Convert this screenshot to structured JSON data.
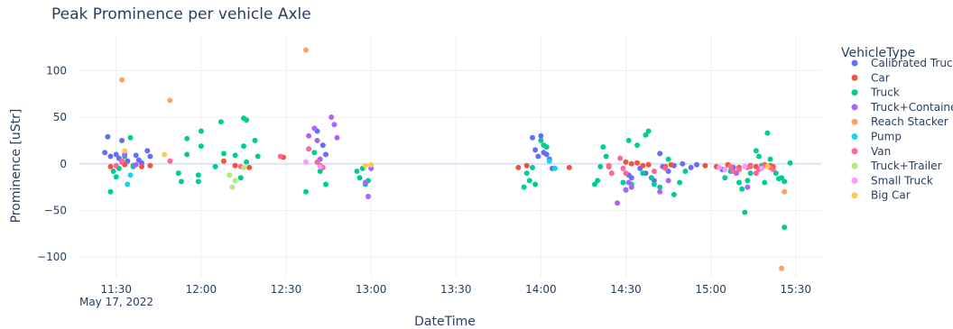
{
  "chart_data": {
    "type": "scatter",
    "title": "Peak Prominence per vehicle Axle",
    "xlabel": "DateTime",
    "ylabel": "Prominence [uStr]",
    "x_date_label": "May 17, 2022",
    "xlim": [
      "11:17",
      "15:39"
    ],
    "ylim": [
      -122,
      137
    ],
    "x_ticks": [
      "11:30",
      "12:00",
      "12:30",
      "13:00",
      "13:30",
      "14:00",
      "14:30",
      "15:00",
      "15:30"
    ],
    "y_ticks": [
      100,
      50,
      0,
      -50,
      -100
    ],
    "y_tick_labels": [
      "100",
      "50",
      "0",
      "−50",
      "−100"
    ],
    "grid": true,
    "legend": {
      "title": "VehicleType",
      "position": "right"
    },
    "series": [
      {
        "name": "Calibrated Truck",
        "color": "#636efa",
        "points": [
          [
            "11:27",
            29
          ],
          [
            "11:26",
            12
          ],
          [
            "11:28",
            8
          ],
          [
            "11:30",
            10
          ],
          [
            "11:31",
            6
          ],
          [
            "11:32",
            25
          ],
          [
            "11:34",
            3
          ],
          [
            "11:37",
            9
          ],
          [
            "11:38",
            4
          ],
          [
            "11:39",
            1
          ],
          [
            "11:41",
            14
          ],
          [
            "11:42",
            8
          ],
          [
            "12:41",
            35
          ],
          [
            "12:43",
            20
          ],
          [
            "12:44",
            10
          ],
          [
            "13:57",
            28
          ],
          [
            "13:58",
            15
          ],
          [
            "13:59",
            8
          ],
          [
            "14:00",
            30
          ],
          [
            "14:01",
            12
          ],
          [
            "14:02",
            10
          ],
          [
            "14:03",
            5
          ],
          [
            "14:04",
            -5
          ],
          [
            "14:31",
            -12
          ],
          [
            "14:32",
            -15
          ],
          [
            "14:35",
            -5
          ],
          [
            "14:37",
            -10
          ],
          [
            "14:40",
            -18
          ],
          [
            "14:42",
            11
          ],
          [
            "14:43",
            -3
          ],
          [
            "14:45",
            -8
          ],
          [
            "14:47",
            -2
          ],
          [
            "14:50",
            0
          ],
          [
            "14:53",
            -4
          ],
          [
            "14:55",
            -1
          ],
          [
            "15:04",
            -6
          ],
          [
            "15:08",
            -4
          ]
        ]
      },
      {
        "name": "Car",
        "color": "#ef553b",
        "points": [
          [
            "11:28",
            -3
          ],
          [
            "11:33",
            -1
          ],
          [
            "11:36",
            -2
          ],
          [
            "11:39",
            -3
          ],
          [
            "11:42",
            -2
          ],
          [
            "12:08",
            3
          ],
          [
            "12:12",
            -2
          ],
          [
            "12:17",
            -4
          ],
          [
            "12:29",
            7
          ],
          [
            "12:42",
            -2
          ],
          [
            "13:52",
            -4
          ],
          [
            "13:55",
            -2
          ],
          [
            "14:10",
            -4
          ],
          [
            "14:24",
            -3
          ],
          [
            "14:30",
            2
          ],
          [
            "14:32",
            0
          ],
          [
            "14:34",
            1
          ],
          [
            "14:36",
            -2
          ],
          [
            "14:38",
            -1
          ],
          [
            "14:44",
            -3
          ],
          [
            "14:46",
            -1
          ],
          [
            "14:58",
            -2
          ],
          [
            "15:02",
            -3
          ],
          [
            "15:06",
            -1
          ],
          [
            "15:10",
            -4
          ],
          [
            "15:14",
            -2
          ],
          [
            "15:16",
            -3
          ],
          [
            "15:19",
            -1
          ],
          [
            "15:21",
            -2
          ],
          [
            "15:22",
            -3
          ]
        ]
      },
      {
        "name": "Truck",
        "color": "#00cc96",
        "points": [
          [
            "11:28",
            -30
          ],
          [
            "11:29",
            -8
          ],
          [
            "11:30",
            -14
          ],
          [
            "11:31",
            -5
          ],
          [
            "11:33",
            8
          ],
          [
            "11:35",
            28
          ],
          [
            "11:36",
            -3
          ],
          [
            "11:52",
            -10
          ],
          [
            "11:53",
            -19
          ],
          [
            "11:55",
            27
          ],
          [
            "11:55",
            10
          ],
          [
            "11:59",
            -12
          ],
          [
            "11:59",
            -19
          ],
          [
            "12:00",
            19
          ],
          [
            "12:00",
            35
          ],
          [
            "12:05",
            -3
          ],
          [
            "12:07",
            45
          ],
          [
            "12:08",
            11
          ],
          [
            "12:12",
            9
          ],
          [
            "12:14",
            -15
          ],
          [
            "12:15",
            19
          ],
          [
            "12:15",
            49
          ],
          [
            "12:16",
            47
          ],
          [
            "12:16",
            2
          ],
          [
            "12:19",
            25
          ],
          [
            "12:20",
            8
          ],
          [
            "12:37",
            -30
          ],
          [
            "12:40",
            12
          ],
          [
            "12:42",
            -8
          ],
          [
            "12:44",
            -22
          ],
          [
            "12:55",
            -8
          ],
          [
            "12:56",
            -15
          ],
          [
            "12:57",
            -5
          ],
          [
            "12:58",
            -22
          ],
          [
            "12:59",
            -18
          ],
          [
            "13:54",
            -25
          ],
          [
            "13:55",
            -10
          ],
          [
            "13:56",
            -18
          ],
          [
            "13:57",
            -4
          ],
          [
            "13:58",
            -22
          ],
          [
            "14:00",
            25
          ],
          [
            "14:01",
            20
          ],
          [
            "14:02",
            18
          ],
          [
            "14:19",
            -22
          ],
          [
            "14:20",
            -18
          ],
          [
            "14:21",
            -3
          ],
          [
            "14:22",
            18
          ],
          [
            "14:23",
            8
          ],
          [
            "14:29",
            -20
          ],
          [
            "14:30",
            -28
          ],
          [
            "14:31",
            25
          ],
          [
            "14:32",
            -22
          ],
          [
            "14:34",
            20
          ],
          [
            "14:36",
            -10
          ],
          [
            "14:37",
            31
          ],
          [
            "14:38",
            35
          ],
          [
            "14:39",
            -15
          ],
          [
            "14:40",
            -22
          ],
          [
            "14:42",
            -25
          ],
          [
            "14:45",
            5
          ],
          [
            "14:47",
            -33
          ],
          [
            "14:49",
            -20
          ],
          [
            "14:51",
            -8
          ],
          [
            "15:05",
            -15
          ],
          [
            "15:07",
            -8
          ],
          [
            "15:10",
            -20
          ],
          [
            "15:11",
            -27
          ],
          [
            "15:12",
            -52
          ],
          [
            "15:13",
            -18
          ],
          [
            "15:14",
            -10
          ],
          [
            "15:16",
            14
          ],
          [
            "15:17",
            8
          ],
          [
            "15:18",
            -2
          ],
          [
            "15:19",
            -20
          ],
          [
            "15:20",
            33
          ],
          [
            "15:21",
            5
          ],
          [
            "15:23",
            -10
          ],
          [
            "15:24",
            -16
          ],
          [
            "15:25",
            -15
          ],
          [
            "15:26",
            -19
          ],
          [
            "15:26",
            -68
          ],
          [
            "15:28",
            1
          ]
        ]
      },
      {
        "name": "Truck+Container",
        "color": "#ab63fa",
        "points": [
          [
            "11:32",
            2
          ],
          [
            "11:33",
            10
          ],
          [
            "11:37",
            -1
          ],
          [
            "12:38",
            30
          ],
          [
            "12:40",
            38
          ],
          [
            "12:41",
            25
          ],
          [
            "12:42",
            5
          ],
          [
            "12:46",
            50
          ],
          [
            "12:47",
            42
          ],
          [
            "12:48",
            28
          ],
          [
            "12:58",
            -20
          ],
          [
            "12:59",
            -35
          ],
          [
            "13:00",
            -5
          ],
          [
            "14:27",
            -42
          ],
          [
            "14:30",
            -28
          ],
          [
            "14:31",
            -20
          ],
          [
            "14:32",
            -25
          ],
          [
            "14:42",
            -30
          ],
          [
            "14:45",
            -18
          ],
          [
            "15:09",
            -10
          ],
          [
            "15:13",
            -25
          ]
        ]
      },
      {
        "name": "Reach Stacker",
        "color": "#ffa15a",
        "points": [
          [
            "11:32",
            90
          ],
          [
            "11:49",
            68
          ],
          [
            "12:37",
            122
          ],
          [
            "15:25",
            -112
          ],
          [
            "15:26",
            -30
          ]
        ]
      },
      {
        "name": "Pump",
        "color": "#19d3f3",
        "points": [
          [
            "11:34",
            -22
          ],
          [
            "11:35",
            -12
          ],
          [
            "14:03",
            3
          ],
          [
            "14:05",
            -5
          ]
        ]
      },
      {
        "name": "Van",
        "color": "#ff6692",
        "points": [
          [
            "11:30",
            -2
          ],
          [
            "11:32",
            3
          ],
          [
            "11:49",
            3
          ],
          [
            "12:14",
            -3
          ],
          [
            "12:28",
            8
          ],
          [
            "12:38",
            16
          ],
          [
            "12:41",
            2
          ],
          [
            "12:43",
            -4
          ],
          [
            "14:24",
            -2
          ],
          [
            "14:25",
            -10
          ],
          [
            "14:28",
            6
          ],
          [
            "14:29",
            -5
          ],
          [
            "14:30",
            -10
          ],
          [
            "14:40",
            -8
          ],
          [
            "14:44",
            -5
          ],
          [
            "15:07",
            -3
          ],
          [
            "15:08",
            -8
          ],
          [
            "15:10",
            -6
          ],
          [
            "15:13",
            -4
          ],
          [
            "15:14",
            -3
          ],
          [
            "15:16",
            -10
          ],
          [
            "15:17",
            -6
          ],
          [
            "15:19",
            -2
          ],
          [
            "15:21",
            -4
          ],
          [
            "15:22",
            -6
          ]
        ]
      },
      {
        "name": "Truck+Trailer",
        "color": "#b6e880",
        "points": [
          [
            "12:10",
            -12
          ],
          [
            "12:11",
            -25
          ],
          [
            "12:12",
            -18
          ],
          [
            "12:15",
            -4
          ]
        ]
      },
      {
        "name": "Small Truck",
        "color": "#ff97ff",
        "points": [
          [
            "12:37",
            2
          ],
          [
            "12:42",
            -3
          ],
          [
            "15:03",
            -4
          ],
          [
            "15:05",
            -6
          ],
          [
            "15:12",
            -3
          ],
          [
            "15:18",
            -5
          ]
        ]
      },
      {
        "name": "Big Car",
        "color": "#fecb52",
        "points": [
          [
            "11:33",
            14
          ],
          [
            "11:47",
            10
          ],
          [
            "12:58",
            -2
          ],
          [
            "13:00",
            -1
          ],
          [
            "15:20",
            -3
          ]
        ]
      }
    ]
  }
}
